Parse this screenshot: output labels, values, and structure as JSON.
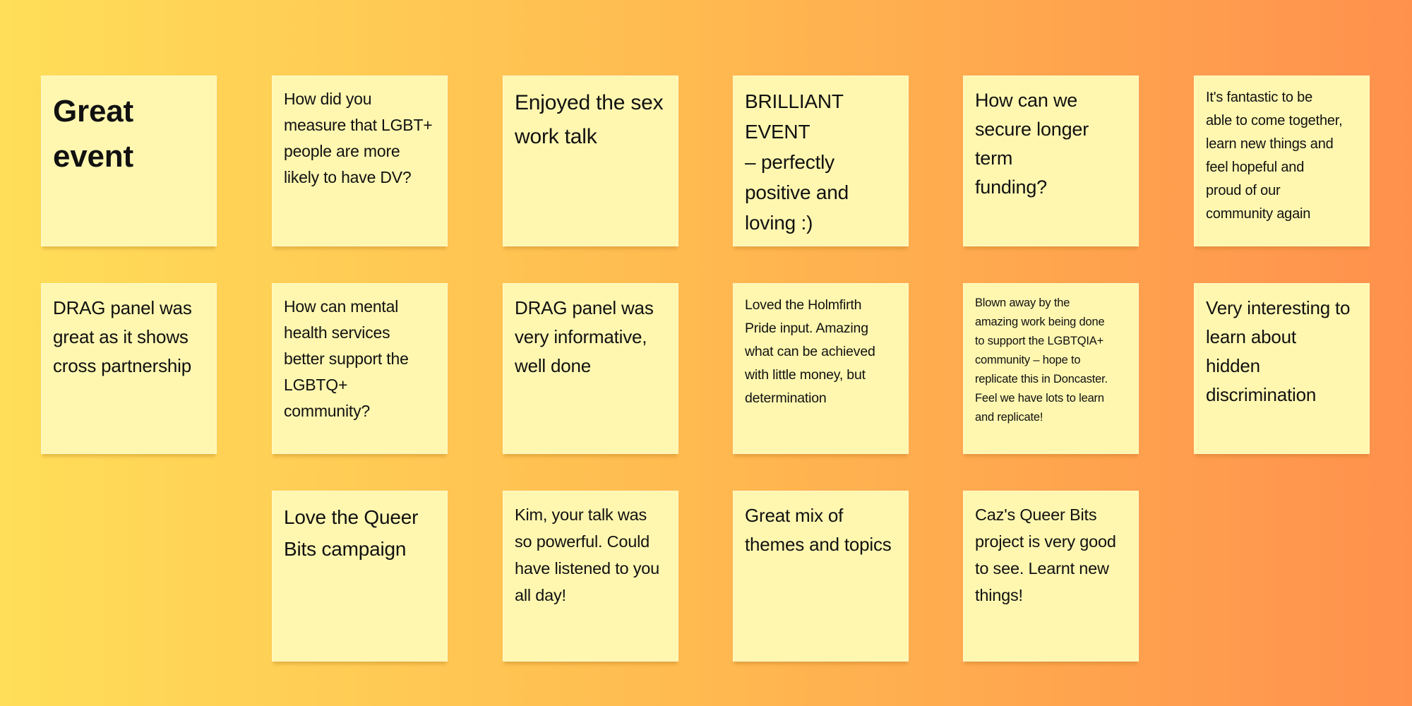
{
  "notes": [
    {
      "text": "Great\nevent"
    },
    {
      "text": "How did you\nmeasure that LGBT+\npeople are more\nlikely to have DV?"
    },
    {
      "text": "Enjoyed the sex\nwork talk"
    },
    {
      "text": "BRILLIANT EVENT\n– perfectly\npositive and\nloving :)"
    },
    {
      "text": "How can we\nsecure longer term\nfunding?"
    },
    {
      "text": "It's fantastic to be\nable to come together,\nlearn new things and\nfeel hopeful and\nproud of our\ncommunity again"
    },
    {
      "text": "DRAG panel was\ngreat as it shows\ncross partnership"
    },
    {
      "text": "How can mental\nhealth services\nbetter support the\nLGBTQ+\ncommunity?"
    },
    {
      "text": "DRAG panel was\nvery informative,\nwell done"
    },
    {
      "text": "Loved the Holmfirth\nPride input. Amazing\nwhat can be achieved\nwith little money, but\ndetermination"
    },
    {
      "text": "Blown away by the\namazing work being done\nto support the LGBTQIA+\ncommunity – hope to\nreplicate this in Doncaster.\nFeel we have lots to learn\nand replicate!"
    },
    {
      "text": "Very interesting to\nlearn about\nhidden\ndiscrimination"
    },
    {
      "text": "Love the Queer\nBits campaign"
    },
    {
      "text": "Kim, your talk was\nso powerful. Could\nhave listened to you\nall day!"
    },
    {
      "text": "Great mix of\nthemes and topics"
    },
    {
      "text": "Caz's Queer Bits\nproject is very good\nto see. Learnt new\nthings!"
    }
  ],
  "colors": {
    "note": "#fff7b0",
    "background_left": "#ffde59",
    "background_right": "#ff914d"
  }
}
